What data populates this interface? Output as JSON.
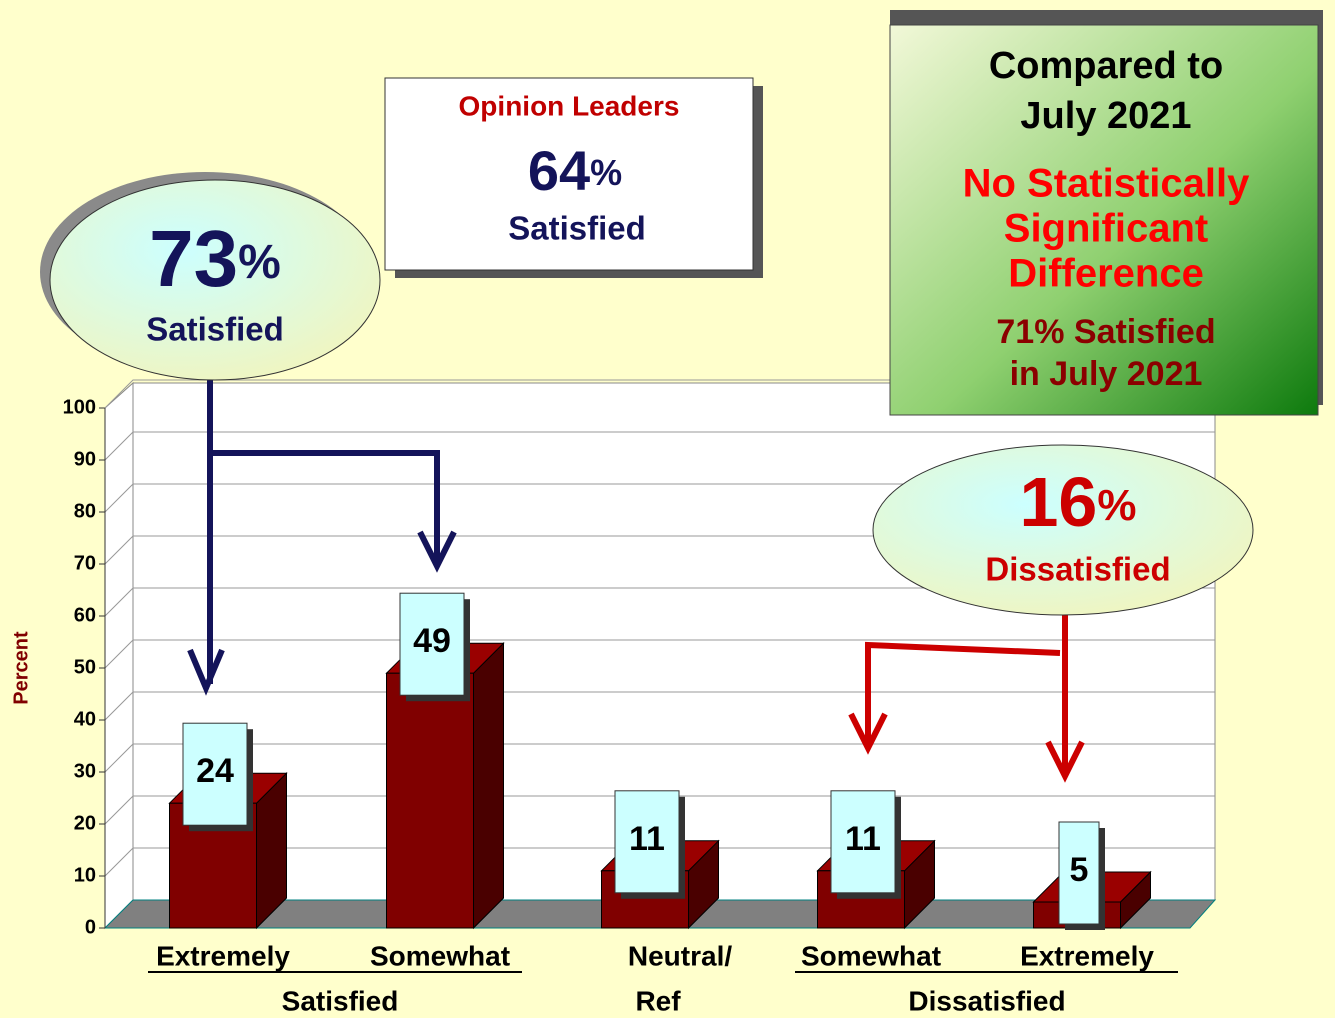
{
  "chart_data": {
    "type": "bar",
    "y_label": "Percent",
    "categories": [
      [
        "Extremely"
      ],
      [
        "Somewhat"
      ],
      [
        "Neutral/",
        "Ref"
      ],
      [
        "Somewhat"
      ],
      [
        "Extremely"
      ]
    ],
    "groups": [
      "Satisfied",
      "Dissatisfied"
    ],
    "values": [
      24,
      49,
      11,
      11,
      5
    ],
    "color": "#800000",
    "ylim": [
      0,
      100
    ],
    "yticks": [
      0,
      10,
      20,
      30,
      40,
      50,
      60,
      70,
      80,
      90,
      100
    ],
    "grid": true,
    "annotations": {
      "satisfied_bubble": {
        "number": "73",
        "unit": "%",
        "text": "Satisfied"
      },
      "opinion_leaders": {
        "title": "Opinion Leaders",
        "number": "64",
        "unit": "%",
        "text": "Satisfied"
      },
      "comparison": {
        "heading": [
          "Compared to",
          "July 2021"
        ],
        "result": [
          "No Statistically",
          "Significant",
          "Difference"
        ],
        "previous": [
          "71% Satisfied",
          "in July 2021"
        ]
      },
      "dissatisfied_bubble": {
        "number": "16",
        "unit": "%",
        "text": "Dissatisfied"
      }
    }
  }
}
